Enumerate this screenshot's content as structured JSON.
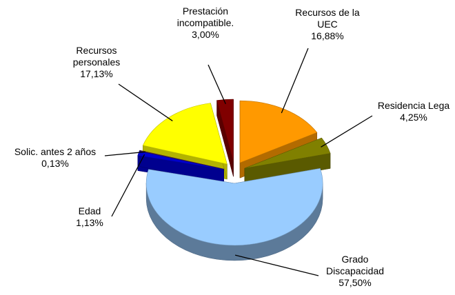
{
  "chart_data": {
    "type": "pie3d",
    "categories": [
      "Recursos de la\nUEC",
      "Residencia Lega",
      "Grado\nDiscapacidad",
      "Edad",
      "Solic. antes 2 años",
      "Recursos\npersonales",
      "Prestación\nincompatible."
    ],
    "values": [
      16.88,
      4.25,
      57.5,
      1.13,
      0.13,
      17.13,
      3.0
    ],
    "value_labels": [
      "16,88%",
      "4,25%",
      "57,50%",
      "1,13%",
      "0,13%",
      "17,13%",
      "3,00%"
    ],
    "colors": [
      "#FF9900",
      "#808000",
      "#99CCFF",
      "#0000CC",
      "#663344",
      "#FFFF00",
      "#800000"
    ]
  }
}
